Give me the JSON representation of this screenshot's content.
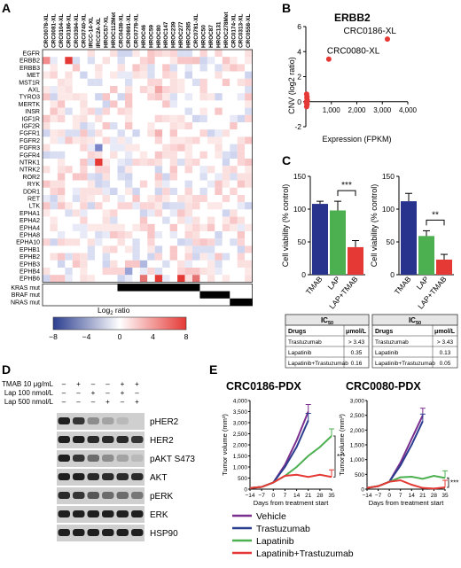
{
  "panels": {
    "A": "A",
    "B": "B",
    "C": "C",
    "D": "D",
    "E": "E"
  },
  "colors": {
    "red": "#e53935",
    "blue": "#2b3d8f",
    "green": "#4caf50",
    "purple": "#7b2f8e",
    "navy": "#27338c"
  },
  "heatmap": {
    "samples": [
      "CRC0078-XL",
      "CRC0081-XL",
      "CRC0104-XL",
      "CRC0186-XL",
      "CRC0394-XL",
      "CRC0740-XL",
      "IRCC-14-XL",
      "IRCC2A-XL",
      "HROC57-XL",
      "HROC112Met",
      "CRC0438-XL",
      "CRC0691-XL",
      "CRC0778-XL",
      "HROC46",
      "HROC59",
      "HROC80",
      "HROC147",
      "HROC239",
      "HROC277",
      "HROC285",
      "CRC0781-XL",
      "HROC50",
      "HROC87",
      "HROC131",
      "HROC278Met",
      "CRC0174-XL",
      "CRC0313-XL",
      "CRC0558-XL"
    ],
    "genes": [
      "EGFR",
      "ERBB2",
      "ERBB3",
      "MET",
      "MST1R",
      "AXL",
      "TYRO3",
      "MERTK",
      "INSR",
      "IGF1R",
      "IGF2R",
      "FGFR1",
      "FGFR2",
      "FGFR3",
      "FGFR4",
      "NTRK1",
      "NTRK2",
      "ROR2",
      "RYK",
      "DDR1",
      "RET",
      "LTK",
      "EPHA1",
      "EPHA2",
      "EPHA4",
      "EPHA8",
      "EPHA10",
      "EPHB1",
      "EPHB2",
      "EPHB3",
      "EPHB4",
      "EPHB6"
    ],
    "mut_rows": [
      "KRAS mut",
      "BRAF mut",
      "NRAS mut"
    ],
    "legend_title": "Log",
    "legend_sub": "2",
    "legend_title_end": " ratio",
    "legend_ticks": [
      "−8",
      "−4",
      "0",
      "4",
      "8"
    ]
  },
  "chart_data": [
    {
      "type": "scatter",
      "title": "ERBB2",
      "xlabel": "Expression (FPKM)",
      "ylabel": "CNV (log2 ratio)",
      "x_ticks": [
        "1,000",
        "2,000",
        "3,000",
        "4,000"
      ],
      "y_ticks": [
        "6",
        "4",
        "2",
        "0",
        "-2"
      ],
      "xlim": [
        0,
        4000
      ],
      "ylim": [
        -2,
        6
      ],
      "points": [
        {
          "x": 3200,
          "y": 5.0,
          "label": "CRC0186-XL"
        },
        {
          "x": 900,
          "y": 3.4,
          "label": "CRC0080-XL"
        },
        {
          "x": 30,
          "y": 0.6
        },
        {
          "x": 40,
          "y": 0.3
        },
        {
          "x": 20,
          "y": 0.0
        },
        {
          "x": 50,
          "y": -0.2
        },
        {
          "x": 30,
          "y": -0.4
        },
        {
          "x": 60,
          "y": 0.1
        },
        {
          "x": 25,
          "y": -0.1
        },
        {
          "x": 45,
          "y": 0.4
        }
      ]
    },
    {
      "type": "bar",
      "ylabel": "Cell viability (% control)",
      "y_ticks": [
        "150",
        "100",
        "50",
        "0"
      ],
      "ylim": [
        0,
        150
      ],
      "categories": [
        "TMAB",
        "LAP",
        "LAP+TMAB"
      ],
      "values": [
        108,
        98,
        42
      ],
      "errors": [
        4,
        14,
        10
      ],
      "significance": "***"
    },
    {
      "type": "bar",
      "ylabel": "Cell viability (% control)",
      "y_ticks": [
        "150",
        "100",
        "50",
        "0"
      ],
      "ylim": [
        0,
        150
      ],
      "categories": [
        "TMAB",
        "LAP",
        "LAP+TMAB"
      ],
      "values": [
        112,
        59,
        23
      ],
      "errors": [
        12,
        8,
        8
      ],
      "significance": "**"
    },
    {
      "type": "line",
      "title": "CRC0186-PDX",
      "xlabel": "Days from treatment start",
      "ylabel": "Tumor volume (mm³)",
      "x_ticks": [
        "−14",
        "−7",
        "0",
        "7",
        "14",
        "21",
        "28",
        "35"
      ],
      "y_ticks": [
        "4,000",
        "3,500",
        "3,000",
        "2,500",
        "2,000",
        "1,500",
        "1,000",
        "500",
        "0"
      ],
      "xlim": [
        -14,
        35
      ],
      "ylim": [
        0,
        4000
      ],
      "significance": "***",
      "series": [
        {
          "name": "Vehicle",
          "x": [
            -14,
            -7,
            0,
            7,
            14,
            21
          ],
          "y": [
            50,
            100,
            300,
            1100,
            2200,
            3500
          ]
        },
        {
          "name": "Trastuzumab",
          "x": [
            -14,
            -7,
            0,
            7,
            14,
            21
          ],
          "y": [
            50,
            100,
            300,
            1000,
            1900,
            3100
          ]
        },
        {
          "name": "Lapatinib",
          "x": [
            -14,
            -7,
            0,
            7,
            14,
            21,
            28,
            35
          ],
          "y": [
            50,
            100,
            300,
            600,
            1000,
            1500,
            1900,
            2400
          ]
        },
        {
          "name": "Lapatinib+Trastuzumab",
          "x": [
            -14,
            -7,
            0,
            7,
            14,
            21,
            28,
            35
          ],
          "y": [
            50,
            100,
            300,
            600,
            650,
            550,
            650,
            550
          ]
        }
      ]
    },
    {
      "type": "line",
      "title": "CRC0080-PDX",
      "xlabel": "Days from treatment start",
      "ylabel": "Tumor volume (mm³)",
      "x_ticks": [
        "−14",
        "−7",
        "0",
        "7",
        "14",
        "21",
        "28",
        "35"
      ],
      "y_ticks": [
        "3,000",
        "2,500",
        "2,000",
        "1,500",
        "1,000",
        "500",
        "0"
      ],
      "xlim": [
        -14,
        35
      ],
      "ylim": [
        0,
        3000
      ],
      "significance": "***",
      "series": [
        {
          "name": "Vehicle",
          "x": [
            -14,
            -7,
            0,
            7,
            14,
            21
          ],
          "y": [
            40,
            100,
            250,
            900,
            1700,
            2500
          ]
        },
        {
          "name": "Trastuzumab",
          "x": [
            -14,
            -7,
            0,
            7,
            14,
            21
          ],
          "y": [
            40,
            100,
            250,
            800,
            1500,
            2300
          ]
        },
        {
          "name": "Lapatinib",
          "x": [
            -14,
            -7,
            0,
            7,
            14,
            21,
            28,
            35
          ],
          "y": [
            40,
            100,
            250,
            400,
            420,
            350,
            450,
            380
          ]
        },
        {
          "name": "Lapatinib+Trastuzumab",
          "x": [
            -14,
            -7,
            0,
            7,
            14,
            21,
            28,
            35
          ],
          "y": [
            40,
            100,
            250,
            300,
            150,
            40,
            20,
            60
          ]
        }
      ]
    }
  ],
  "ic50_tables": [
    {
      "title": "IC",
      "title_sub": "50",
      "col1": "Drugs",
      "col2": "μmol/L",
      "rows": [
        [
          "Trastuzumab",
          "> 3.43"
        ],
        [
          "Lapatinib",
          "0.35"
        ],
        [
          "Lapatinib+Trastuzumab",
          "0.16"
        ]
      ]
    },
    {
      "title": "IC",
      "title_sub": "50",
      "col1": "Drugs",
      "col2": "μmol/L",
      "rows": [
        [
          "Trastuzumab",
          "> 3.43"
        ],
        [
          "Lapatinib",
          "0.13"
        ],
        [
          "Lapatinib+Trastuzumab",
          "0.05"
        ]
      ]
    }
  ],
  "western": {
    "conditions": [
      "TMAB 10 μg/mL",
      "Lap 100 nmol/L",
      "Lap 500 nmol/L"
    ],
    "signs": [
      [
        "–",
        "+",
        "–",
        "–",
        "+",
        "+"
      ],
      [
        "–",
        "–",
        "+",
        "–",
        "+",
        "–"
      ],
      [
        "–",
        "–",
        "–",
        "+",
        "–",
        "+"
      ]
    ],
    "bands": [
      "pHER2",
      "HER2",
      "pAKT S473",
      "AKT",
      "pERK",
      "ERK",
      "HSP90"
    ],
    "intensity": [
      [
        0.95,
        0.85,
        0.45,
        0.35,
        0.25,
        0.15
      ],
      [
        0.95,
        0.95,
        0.9,
        0.9,
        0.9,
        0.85
      ],
      [
        0.95,
        0.85,
        0.6,
        0.45,
        0.35,
        0.25
      ],
      [
        0.95,
        0.95,
        0.9,
        0.9,
        0.9,
        0.9
      ],
      [
        0.9,
        0.85,
        0.7,
        0.6,
        0.6,
        0.55
      ],
      [
        0.95,
        0.95,
        0.95,
        0.95,
        0.95,
        0.95
      ],
      [
        0.95,
        0.95,
        0.95,
        0.95,
        0.95,
        0.95
      ]
    ]
  },
  "legend_e": [
    "Vehicle",
    "Trastuzumab",
    "Lapatinib",
    "Lapatinib+Trastuzumab"
  ]
}
